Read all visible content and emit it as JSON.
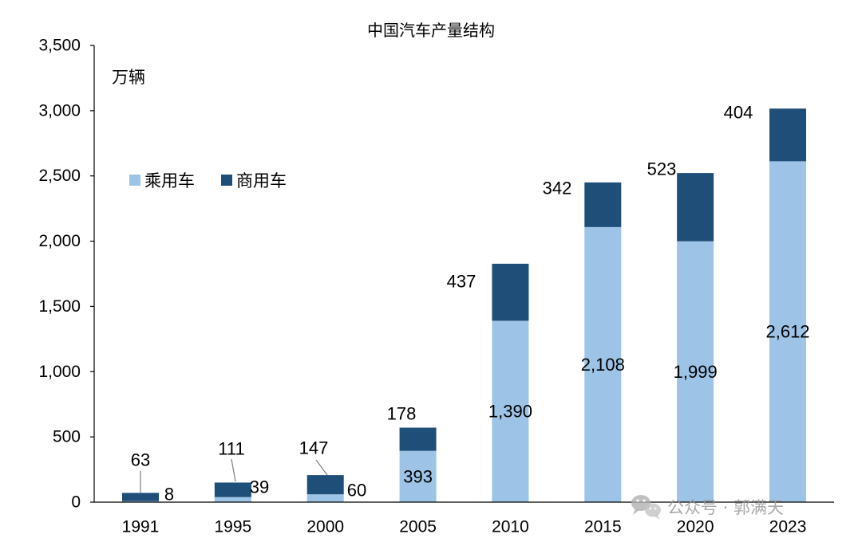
{
  "chart_data": {
    "type": "bar",
    "stacked": true,
    "title": "中国汽车产量结构",
    "ylabel": "万辆",
    "xlabel": "",
    "categories": [
      "1991",
      "1995",
      "2000",
      "2005",
      "2010",
      "2015",
      "2020",
      "2023"
    ],
    "series": [
      {
        "name": "乘用车",
        "color": "#9dc3e6",
        "values": [
          8,
          39,
          60,
          393,
          1390,
          2108,
          1999,
          2612
        ]
      },
      {
        "name": "商用车",
        "color": "#1f4e79",
        "values": [
          63,
          111,
          147,
          178,
          437,
          342,
          523,
          404
        ]
      }
    ],
    "ylim": [
      0,
      3500
    ],
    "yticks": [
      0,
      500,
      1000,
      1500,
      2000,
      2500,
      3000,
      3500
    ],
    "grid": false,
    "legend": "left"
  },
  "watermark": {
    "text": "公众号 · 郭满天",
    "icon": "wechat-icon"
  }
}
